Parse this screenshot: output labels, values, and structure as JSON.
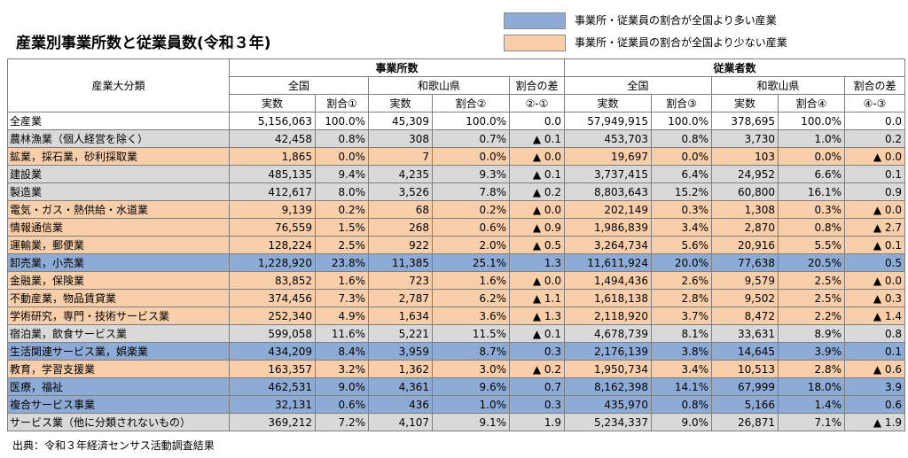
{
  "title": "産業別事業所数と従業員数(令和３年)",
  "legend": {
    "blue_label": "事業所・従業員の割合が全国より多い産業",
    "orange_label": "事業所・従業員の割合が全国より少ない産業",
    "blue_color": "#8eabd6",
    "orange_color": "#f8cfaa",
    "gray_color": "#d9d9d9"
  },
  "header": {
    "industry_label": "産業大分類",
    "establishments_label": "事業所数",
    "employees_label": "従業者数",
    "national": "全国",
    "wakayama": "和歌山県",
    "diff_label": "割合の差",
    "count": "実数",
    "share1": "割合①",
    "share2": "割合②",
    "diff1": "②-①",
    "share3": "割合③",
    "share4": "割合④",
    "diff2": "④-③"
  },
  "rows": [
    {
      "name": "全産業",
      "style": "white",
      "c1": "5,156,063",
      "c2": "100.0%",
      "c3": "45,309",
      "c4": "100.0%",
      "c5": "0.0",
      "c6": "57,949,915",
      "c7": "100.0%",
      "c8": "378,695",
      "c9": "100.0%",
      "c10": "0.0"
    },
    {
      "name": "農林漁業（個人経営を除く）",
      "style": "gray",
      "c1": "42,458",
      "c2": "0.8%",
      "c3": "308",
      "c4": "0.7%",
      "c5": "▲ 0.1",
      "c6": "453,703",
      "c7": "0.8%",
      "c8": "3,730",
      "c9": "1.0%",
      "c10": "0.2"
    },
    {
      "name": "鉱業，採石業，砂利採取業",
      "style": "orange",
      "c1": "1,865",
      "c2": "0.0%",
      "c3": "7",
      "c4": "0.0%",
      "c5": "▲ 0.0",
      "c6": "19,697",
      "c7": "0.0%",
      "c8": "103",
      "c9": "0.0%",
      "c10": "▲ 0.0"
    },
    {
      "name": "建設業",
      "style": "gray",
      "c1": "485,135",
      "c2": "9.4%",
      "c3": "4,235",
      "c4": "9.3%",
      "c5": "▲ 0.1",
      "c6": "3,737,415",
      "c7": "6.4%",
      "c8": "24,952",
      "c9": "6.6%",
      "c10": "0.1"
    },
    {
      "name": "製造業",
      "style": "gray",
      "c1": "412,617",
      "c2": "8.0%",
      "c3": "3,526",
      "c4": "7.8%",
      "c5": "▲ 0.2",
      "c6": "8,803,643",
      "c7": "15.2%",
      "c8": "60,800",
      "c9": "16.1%",
      "c10": "0.9"
    },
    {
      "name": "電気・ガス・熱供給・水道業",
      "style": "orange",
      "c1": "9,139",
      "c2": "0.2%",
      "c3": "68",
      "c4": "0.2%",
      "c5": "▲ 0.0",
      "c6": "202,149",
      "c7": "0.3%",
      "c8": "1,308",
      "c9": "0.3%",
      "c10": "▲ 0.0"
    },
    {
      "name": "情報通信業",
      "style": "orange",
      "c1": "76,559",
      "c2": "1.5%",
      "c3": "268",
      "c4": "0.6%",
      "c5": "▲ 0.9",
      "c6": "1,986,839",
      "c7": "3.4%",
      "c8": "2,870",
      "c9": "0.8%",
      "c10": "▲ 2.7"
    },
    {
      "name": "運輸業，郵便業",
      "style": "orange",
      "c1": "128,224",
      "c2": "2.5%",
      "c3": "922",
      "c4": "2.0%",
      "c5": "▲ 0.5",
      "c6": "3,264,734",
      "c7": "5.6%",
      "c8": "20,916",
      "c9": "5.5%",
      "c10": "▲ 0.1"
    },
    {
      "name": "卸売業，小売業",
      "style": "blue",
      "c1": "1,228,920",
      "c2": "23.8%",
      "c3": "11,385",
      "c4": "25.1%",
      "c5": "1.3",
      "c6": "11,611,924",
      "c7": "20.0%",
      "c8": "77,638",
      "c9": "20.5%",
      "c10": "0.5"
    },
    {
      "name": "金融業，保険業",
      "style": "orange",
      "c1": "83,852",
      "c2": "1.6%",
      "c3": "723",
      "c4": "1.6%",
      "c5": "▲ 0.0",
      "c6": "1,494,436",
      "c7": "2.6%",
      "c8": "9,579",
      "c9": "2.5%",
      "c10": "▲ 0.0"
    },
    {
      "name": "不動産業，物品賃貸業",
      "style": "orange",
      "c1": "374,456",
      "c2": "7.3%",
      "c3": "2,787",
      "c4": "6.2%",
      "c5": "▲ 1.1",
      "c6": "1,618,138",
      "c7": "2.8%",
      "c8": "9,502",
      "c9": "2.5%",
      "c10": "▲ 0.3"
    },
    {
      "name": "学術研究，専門・技術サービス業",
      "style": "orange",
      "c1": "252,340",
      "c2": "4.9%",
      "c3": "1,634",
      "c4": "3.6%",
      "c5": "▲ 1.3",
      "c6": "2,118,920",
      "c7": "3.7%",
      "c8": "8,472",
      "c9": "2.2%",
      "c10": "▲ 1.4"
    },
    {
      "name": "宿泊業，飲食サービス業",
      "style": "gray",
      "c1": "599,058",
      "c2": "11.6%",
      "c3": "5,221",
      "c4": "11.5%",
      "c5": "▲ 0.1",
      "c6": "4,678,739",
      "c7": "8.1%",
      "c8": "33,631",
      "c9": "8.9%",
      "c10": "0.8"
    },
    {
      "name": "生活関連サービス業，娯楽業",
      "style": "blue",
      "c1": "434,209",
      "c2": "8.4%",
      "c3": "3,959",
      "c4": "8.7%",
      "c5": "0.3",
      "c6": "2,176,139",
      "c7": "3.8%",
      "c8": "14,645",
      "c9": "3.9%",
      "c10": "0.1"
    },
    {
      "name": "教育，学習支援業",
      "style": "orange",
      "c1": "163,357",
      "c2": "3.2%",
      "c3": "1,362",
      "c4": "3.0%",
      "c5": "▲ 0.2",
      "c6": "1,950,734",
      "c7": "3.4%",
      "c8": "10,513",
      "c9": "2.8%",
      "c10": "▲ 0.6"
    },
    {
      "name": "医療，福祉",
      "style": "blue",
      "c1": "462,531",
      "c2": "9.0%",
      "c3": "4,361",
      "c4": "9.6%",
      "c5": "0.7",
      "c6": "8,162,398",
      "c7": "14.1%",
      "c8": "67,999",
      "c9": "18.0%",
      "c10": "3.9"
    },
    {
      "name": "複合サービス事業",
      "style": "blue",
      "c1": "32,131",
      "c2": "0.6%",
      "c3": "436",
      "c4": "1.0%",
      "c5": "0.3",
      "c6": "435,970",
      "c7": "0.8%",
      "c8": "5,166",
      "c9": "1.4%",
      "c10": "0.6"
    },
    {
      "name": "サービス業（他に分類されないもの）",
      "style": "gray",
      "c1": "369,212",
      "c2": "7.2%",
      "c3": "4,107",
      "c4": "9.1%",
      "c5": "1.9",
      "c6": "5,234,337",
      "c7": "9.0%",
      "c8": "26,871",
      "c9": "7.1%",
      "c10": "▲ 1.9"
    }
  ],
  "source": "出典：令和３年経済センサス活動調査結果"
}
